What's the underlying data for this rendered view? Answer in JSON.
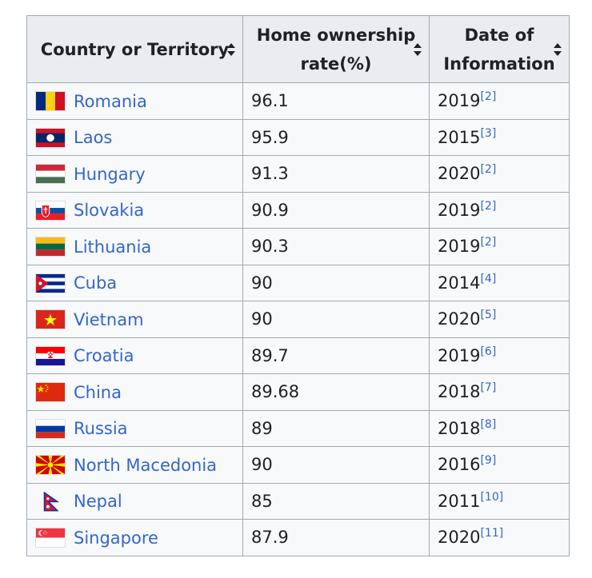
{
  "columns": [
    {
      "label_line1": "Country or Territory",
      "label_line2": ""
    },
    {
      "label_line1": "Home ownership",
      "label_line2": "rate(%)"
    },
    {
      "label_line1": "Date of",
      "label_line2": "Information"
    }
  ],
  "rows": [
    {
      "country": "Romania",
      "flag": "romania-flag-icon",
      "rate": "96.1",
      "year": "2019",
      "ref": "[2]"
    },
    {
      "country": "Laos",
      "flag": "laos-flag-icon",
      "rate": "95.9",
      "year": "2015",
      "ref": "[3]"
    },
    {
      "country": "Hungary",
      "flag": "hungary-flag-icon",
      "rate": "91.3",
      "year": "2020",
      "ref": "[2]"
    },
    {
      "country": "Slovakia",
      "flag": "slovakia-flag-icon",
      "rate": "90.9",
      "year": "2019",
      "ref": "[2]"
    },
    {
      "country": "Lithuania",
      "flag": "lithuania-flag-icon",
      "rate": "90.3",
      "year": "2019",
      "ref": "[2]"
    },
    {
      "country": "Cuba",
      "flag": "cuba-flag-icon",
      "rate": "90",
      "year": "2014",
      "ref": "[4]"
    },
    {
      "country": "Vietnam",
      "flag": "vietnam-flag-icon",
      "rate": "90",
      "year": "2020",
      "ref": "[5]"
    },
    {
      "country": "Croatia",
      "flag": "croatia-flag-icon",
      "rate": "89.7",
      "year": "2019",
      "ref": "[6]"
    },
    {
      "country": "China",
      "flag": "china-flag-icon",
      "rate": "89.68",
      "year": "2018",
      "ref": "[7]"
    },
    {
      "country": "Russia",
      "flag": "russia-flag-icon",
      "rate": "89",
      "year": "2018",
      "ref": "[8]"
    },
    {
      "country": "North Macedonia",
      "flag": "north-macedonia-flag-icon",
      "rate": "90",
      "year": "2016",
      "ref": "[9]"
    },
    {
      "country": "Nepal",
      "flag": "nepal-flag-icon",
      "rate": "85",
      "year": "2011",
      "ref": "[10]"
    },
    {
      "country": "Singapore",
      "flag": "singapore-flag-icon",
      "rate": "87.9",
      "year": "2020",
      "ref": "[11]"
    }
  ],
  "colors": {
    "link": "#3366cc",
    "header_bg": "#eaecf0",
    "cell_bg": "#f8f9fa",
    "border": "#a2a9b1"
  }
}
